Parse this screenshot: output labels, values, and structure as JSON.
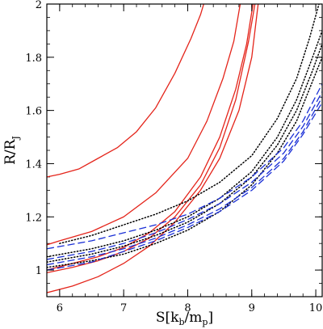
{
  "chart_data": {
    "type": "line",
    "xlabel": {
      "main": "S[k",
      "sub1": "b",
      "mid": "/m",
      "sub2": "p",
      "end": "]"
    },
    "ylabel": {
      "main": "R/R",
      "sub": "J"
    },
    "xlim": [
      5.8,
      10.1
    ],
    "ylim": [
      0.9,
      2.0
    ],
    "x_ticks": [
      6,
      7,
      8,
      9,
      10
    ],
    "y_ticks": [
      1,
      1.2,
      1.4,
      1.6,
      1.8,
      2
    ],
    "y_tick_labels": [
      "1",
      "1.2",
      "1.4",
      "1.6",
      "1.8",
      "2"
    ],
    "minor_x_step": 0.2,
    "minor_y_step": 0.05,
    "series": [
      {
        "color": "#e4241a",
        "style": "solid",
        "points": [
          [
            5.8,
            1.35
          ],
          [
            5.9,
            1.355
          ],
          [
            6.0,
            1.36
          ],
          [
            6.3,
            1.38
          ],
          [
            6.6,
            1.42
          ],
          [
            6.9,
            1.46
          ],
          [
            7.2,
            1.52
          ],
          [
            7.5,
            1.61
          ],
          [
            7.8,
            1.74
          ],
          [
            8.05,
            1.87
          ],
          [
            8.2,
            1.96
          ],
          [
            8.25,
            2.0
          ]
        ]
      },
      {
        "color": "#e4241a",
        "style": "solid",
        "points": [
          [
            5.8,
            1.095
          ],
          [
            6.0,
            1.11
          ],
          [
            6.5,
            1.145
          ],
          [
            7.0,
            1.2
          ],
          [
            7.5,
            1.29
          ],
          [
            8.0,
            1.42
          ],
          [
            8.3,
            1.56
          ],
          [
            8.55,
            1.72
          ],
          [
            8.72,
            1.86
          ],
          [
            8.82,
            2.0
          ]
        ]
      },
      {
        "color": "#e4241a",
        "style": "solid",
        "points": [
          [
            5.8,
            1.0
          ],
          [
            6.2,
            1.025
          ],
          [
            6.6,
            1.05
          ],
          [
            7.0,
            1.085
          ],
          [
            7.4,
            1.14
          ],
          [
            7.8,
            1.22
          ],
          [
            8.2,
            1.35
          ],
          [
            8.5,
            1.5
          ],
          [
            8.75,
            1.68
          ],
          [
            8.92,
            1.85
          ],
          [
            9.02,
            2.0
          ]
        ]
      },
      {
        "color": "#e4241a",
        "style": "solid",
        "points": [
          [
            5.8,
            0.99
          ],
          [
            6.2,
            1.01
          ],
          [
            6.6,
            1.035
          ],
          [
            7.0,
            1.07
          ],
          [
            7.4,
            1.12
          ],
          [
            7.8,
            1.2
          ],
          [
            8.2,
            1.32
          ],
          [
            8.5,
            1.46
          ],
          [
            8.75,
            1.64
          ],
          [
            8.95,
            1.86
          ],
          [
            9.05,
            2.0
          ]
        ]
      },
      {
        "color": "#e4241a",
        "style": "solid",
        "points": [
          [
            5.8,
            0.915
          ],
          [
            6.2,
            0.94
          ],
          [
            6.6,
            0.975
          ],
          [
            7.0,
            1.025
          ],
          [
            7.4,
            1.09
          ],
          [
            7.8,
            1.18
          ],
          [
            8.2,
            1.3
          ],
          [
            8.5,
            1.42
          ],
          [
            8.8,
            1.6
          ],
          [
            9.0,
            1.8
          ],
          [
            9.1,
            2.0
          ]
        ]
      },
      {
        "color": "#000000",
        "style": "dotted",
        "points": [
          [
            6.0,
            1.1
          ],
          [
            6.5,
            1.13
          ],
          [
            7.0,
            1.17
          ],
          [
            7.5,
            1.21
          ],
          [
            8.0,
            1.26
          ],
          [
            8.5,
            1.33
          ],
          [
            9.0,
            1.43
          ],
          [
            9.4,
            1.57
          ],
          [
            9.7,
            1.72
          ],
          [
            9.9,
            1.87
          ],
          [
            10.05,
            2.0
          ]
        ]
      },
      {
        "color": "#000000",
        "style": "dotted",
        "points": [
          [
            5.8,
            1.05
          ],
          [
            6.5,
            1.08
          ],
          [
            7.0,
            1.11
          ],
          [
            7.5,
            1.15
          ],
          [
            8.0,
            1.2
          ],
          [
            8.5,
            1.27
          ],
          [
            9.0,
            1.37
          ],
          [
            9.4,
            1.5
          ],
          [
            9.7,
            1.64
          ],
          [
            9.95,
            1.8
          ],
          [
            10.1,
            1.9
          ]
        ]
      },
      {
        "color": "#000000",
        "style": "dotted",
        "points": [
          [
            5.8,
            1.03
          ],
          [
            6.5,
            1.06
          ],
          [
            7.0,
            1.09
          ],
          [
            7.5,
            1.13
          ],
          [
            8.0,
            1.18
          ],
          [
            8.5,
            1.25
          ],
          [
            9.0,
            1.35
          ],
          [
            9.4,
            1.47
          ],
          [
            9.7,
            1.6
          ],
          [
            9.95,
            1.75
          ],
          [
            10.1,
            1.85
          ]
        ]
      },
      {
        "color": "#000000",
        "style": "dotted",
        "points": [
          [
            5.8,
            1.01
          ],
          [
            6.5,
            1.035
          ],
          [
            7.0,
            1.06
          ],
          [
            7.5,
            1.1
          ],
          [
            8.0,
            1.15
          ],
          [
            8.5,
            1.22
          ],
          [
            9.0,
            1.32
          ],
          [
            9.4,
            1.44
          ],
          [
            9.7,
            1.56
          ],
          [
            9.95,
            1.71
          ],
          [
            10.1,
            1.8
          ]
        ]
      },
      {
        "color": "#1a2fd6",
        "style": "dashed",
        "points": [
          [
            5.8,
            1.08
          ],
          [
            6.5,
            1.11
          ],
          [
            7.0,
            1.14
          ],
          [
            7.5,
            1.17
          ],
          [
            8.0,
            1.21
          ],
          [
            8.5,
            1.27
          ],
          [
            9.0,
            1.35
          ],
          [
            9.5,
            1.46
          ],
          [
            9.8,
            1.56
          ],
          [
            10.1,
            1.7
          ]
        ]
      },
      {
        "color": "#1a2fd6",
        "style": "dashed",
        "points": [
          [
            5.8,
            1.04
          ],
          [
            6.5,
            1.07
          ],
          [
            7.0,
            1.1
          ],
          [
            7.5,
            1.14
          ],
          [
            8.0,
            1.19
          ],
          [
            8.5,
            1.25
          ],
          [
            9.0,
            1.33
          ],
          [
            9.5,
            1.44
          ],
          [
            9.8,
            1.54
          ],
          [
            10.1,
            1.67
          ]
        ]
      },
      {
        "color": "#1a2fd6",
        "style": "dashed",
        "points": [
          [
            5.8,
            1.02
          ],
          [
            6.5,
            1.05
          ],
          [
            7.0,
            1.08
          ],
          [
            7.5,
            1.12
          ],
          [
            8.0,
            1.17
          ],
          [
            8.5,
            1.23
          ],
          [
            9.0,
            1.31
          ],
          [
            9.5,
            1.42
          ],
          [
            9.8,
            1.52
          ],
          [
            10.1,
            1.65
          ]
        ]
      },
      {
        "color": "#1a2fd6",
        "style": "dashed",
        "points": [
          [
            5.8,
            1.0
          ],
          [
            6.5,
            1.03
          ],
          [
            7.0,
            1.07
          ],
          [
            7.5,
            1.11
          ],
          [
            8.0,
            1.16
          ],
          [
            8.5,
            1.22
          ],
          [
            9.0,
            1.3
          ],
          [
            9.5,
            1.41
          ],
          [
            9.8,
            1.51
          ],
          [
            10.1,
            1.63
          ]
        ]
      }
    ]
  }
}
